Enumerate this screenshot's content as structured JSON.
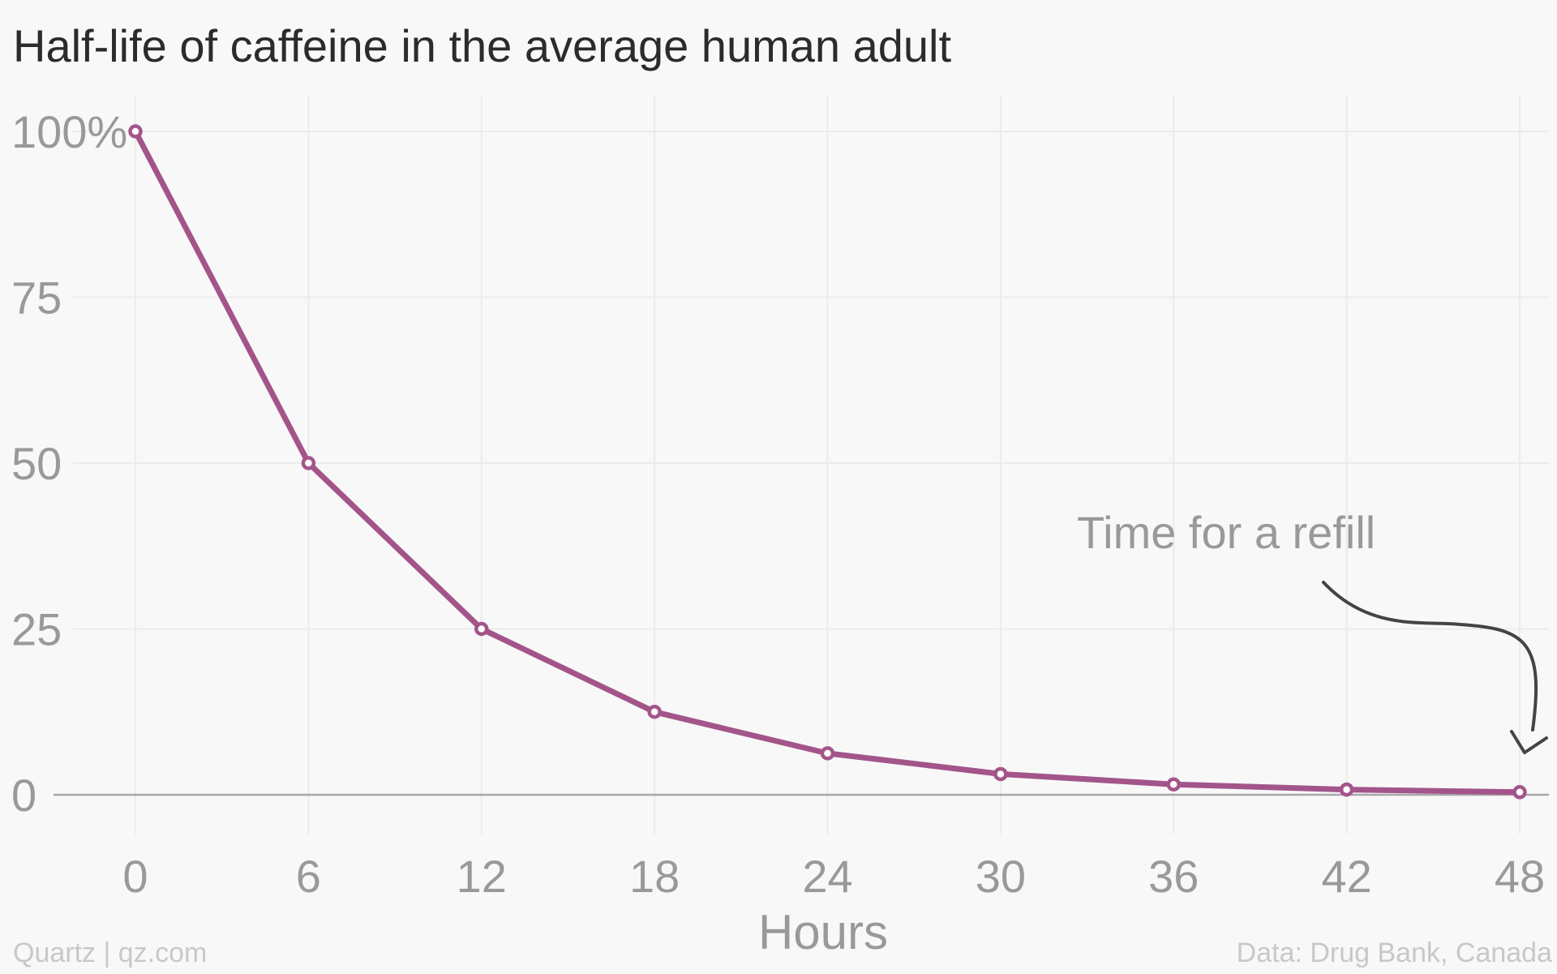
{
  "title": "Half-life of caffeine in the average human adult",
  "footer": {
    "credit": "Quartz | qz.com",
    "source": "Data: Drug Bank, Canada"
  },
  "annotation": "Time for a refill",
  "colors": {
    "line": "#a3558a",
    "grid": "#ebebeb",
    "baseline": "#a8a8a8",
    "tick_text": "#999999",
    "arrow": "#444444",
    "background": "#f8f8f8"
  },
  "chart_data": {
    "type": "line",
    "title": "Half-life of caffeine in the average human adult",
    "xlabel": "Hours",
    "ylabel": "",
    "x": [
      0,
      6,
      12,
      18,
      24,
      30,
      36,
      42,
      48
    ],
    "series": [
      {
        "values": [
          100,
          50,
          25,
          12.5,
          6.25,
          3.125,
          1.5625,
          0.78125,
          0.390625
        ]
      }
    ],
    "xticks": [
      "0",
      "6",
      "12",
      "18",
      "24",
      "30",
      "36",
      "42",
      "48"
    ],
    "xtick_values": [
      0,
      6,
      12,
      18,
      24,
      30,
      36,
      42,
      48
    ],
    "yticks": [
      "0",
      "25",
      "50",
      "75",
      "100%"
    ],
    "ytick_values": [
      0,
      25,
      50,
      75,
      100
    ],
    "xlim": [
      0,
      48
    ],
    "ylim": [
      0,
      100
    ],
    "grid": true,
    "legend": "none",
    "annotations": [
      {
        "text": "Time for a refill",
        "points_to_x": 48
      }
    ]
  }
}
